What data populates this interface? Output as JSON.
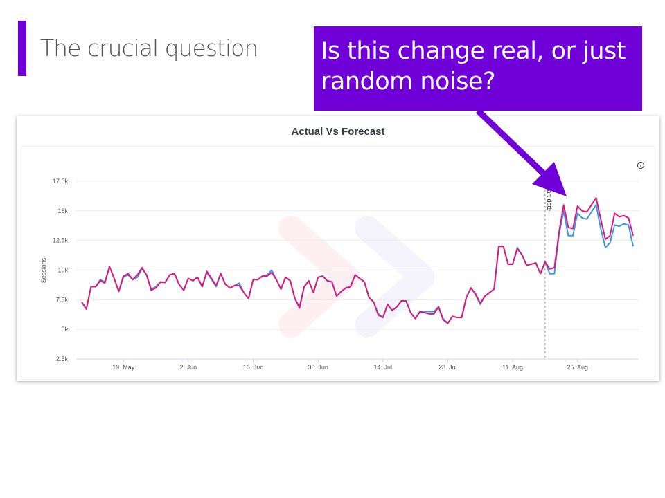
{
  "slide": {
    "title": "The crucial question",
    "callout": "Is this change real, or just random noise?",
    "accent_color": "#7000d8"
  },
  "chart_data": {
    "type": "line",
    "title": "Actual Vs Forecast",
    "xlabel": "",
    "ylabel": "Sessions",
    "ylim": [
      2500,
      17500
    ],
    "y_ticks": [
      2500,
      5000,
      7500,
      10000,
      12500,
      15000,
      17500
    ],
    "y_tick_labels": [
      "2.5k",
      "5k",
      "7.5k",
      "10k",
      "12.5k",
      "15k",
      "17.5k"
    ],
    "x_tick_labels": [
      "19. May",
      "2. Jun",
      "16. Jun",
      "30. Jun",
      "14. Jul",
      "28. Jul",
      "11. Aug",
      "25. Aug"
    ],
    "x_tick_dates": [
      "19 May",
      "2 Jun",
      "16 Jun",
      "30 Jun",
      "14 Jul",
      "28 Jul",
      "11 Aug",
      "25 Aug"
    ],
    "grid": true,
    "annotation": {
      "label": "Start date",
      "date": "18 Aug"
    },
    "info_icon": "info-circle-icon",
    "x": [
      "10 May",
      "11 May",
      "12 May",
      "13 May",
      "14 May",
      "15 May",
      "16 May",
      "17 May",
      "18 May",
      "19 May",
      "20 May",
      "21 May",
      "22 May",
      "23 May",
      "24 May",
      "25 May",
      "26 May",
      "27 May",
      "28 May",
      "29 May",
      "30 May",
      "31 May",
      "1 Jun",
      "2 Jun",
      "3 Jun",
      "4 Jun",
      "5 Jun",
      "6 Jun",
      "7 Jun",
      "8 Jun",
      "9 Jun",
      "10 Jun",
      "11 Jun",
      "12 Jun",
      "13 Jun",
      "14 Jun",
      "15 Jun",
      "16 Jun",
      "17 Jun",
      "18 Jun",
      "19 Jun",
      "20 Jun",
      "21 Jun",
      "22 Jun",
      "23 Jun",
      "24 Jun",
      "25 Jun",
      "26 Jun",
      "27 Jun",
      "28 Jun",
      "29 Jun",
      "30 Jun",
      "1 Jul",
      "2 Jul",
      "3 Jul",
      "4 Jul",
      "5 Jul",
      "6 Jul",
      "7 Jul",
      "8 Jul",
      "9 Jul",
      "10 Jul",
      "11 Jul",
      "12 Jul",
      "13 Jul",
      "14 Jul",
      "15 Jul",
      "16 Jul",
      "17 Jul",
      "18 Jul",
      "19 Jul",
      "20 Jul",
      "21 Jul",
      "22 Jul",
      "23 Jul",
      "24 Jul",
      "25 Jul",
      "26 Jul",
      "27 Jul",
      "28 Jul",
      "29 Jul",
      "30 Jul",
      "31 Jul",
      "1 Aug",
      "2 Aug",
      "3 Aug",
      "4 Aug",
      "5 Aug",
      "6 Aug",
      "7 Aug",
      "8 Aug",
      "9 Aug",
      "10 Aug",
      "11 Aug",
      "12 Aug",
      "13 Aug",
      "14 Aug",
      "15 Aug",
      "16 Aug",
      "17 Aug",
      "18 Aug",
      "19 Aug",
      "20 Aug",
      "21 Aug",
      "22 Aug",
      "23 Aug",
      "24 Aug",
      "25 Aug",
      "26 Aug",
      "27 Aug",
      "28 Aug",
      "29 Aug",
      "30 Aug",
      "31 Aug",
      "1 Sep",
      "2 Sep",
      "3 Sep",
      "4 Sep",
      "5 Sep",
      "6 Sep"
    ],
    "series": [
      {
        "color": "#d81b7c",
        "values": [
          7300,
          6700,
          8600,
          8600,
          9100,
          8900,
          10300,
          9300,
          8200,
          9500,
          9700,
          9200,
          9600,
          10200,
          9600,
          8300,
          8500,
          9000,
          8950,
          9600,
          9700,
          8800,
          8300,
          9300,
          9100,
          9400,
          8600,
          9900,
          9300,
          8700,
          9700,
          8800,
          8500,
          8700,
          8700,
          8100,
          7600,
          9200,
          9200,
          9500,
          9500,
          9800,
          9200,
          8400,
          9400,
          9100,
          7600,
          6800,
          8600,
          9100,
          8100,
          9400,
          9500,
          9100,
          9000,
          7800,
          8200,
          8500,
          8600,
          9600,
          9300,
          9000,
          7700,
          7300,
          6200,
          6000,
          7100,
          6600,
          6900,
          7400,
          7400,
          6400,
          5900,
          6500,
          6400,
          6300,
          6300,
          6900,
          5800,
          5500,
          6100,
          6000,
          6000,
          7700,
          8500,
          8000,
          7200,
          7800,
          8100,
          8400,
          12000,
          12000,
          10500,
          10500,
          11800,
          11300,
          10400,
          10500,
          10600,
          9700,
          10700,
          10100,
          10200,
          13200,
          15500,
          13600,
          13500,
          15400,
          15000,
          14900,
          15500,
          16100,
          14300,
          12600,
          12900,
          14800,
          14500,
          14600,
          14400,
          12900
        ]
      },
      {
        "color": "#3d96e0",
        "values": [
          7300,
          6700,
          8600,
          8600,
          9200,
          9000,
          10300,
          9300,
          8200,
          9400,
          9600,
          9200,
          9400,
          10100,
          9600,
          8400,
          8600,
          9000,
          8950,
          9600,
          9700,
          8800,
          8300,
          9300,
          9100,
          9400,
          8600,
          9800,
          9200,
          8600,
          9700,
          8800,
          8500,
          8700,
          8900,
          8100,
          7600,
          9200,
          9200,
          9500,
          9600,
          10000,
          9200,
          8400,
          9400,
          9100,
          7600,
          6900,
          8600,
          9100,
          8100,
          9400,
          9500,
          9100,
          9000,
          7800,
          8200,
          8500,
          8600,
          9600,
          9300,
          9000,
          7700,
          7300,
          6300,
          6000,
          7100,
          6600,
          6900,
          7400,
          7400,
          6400,
          5900,
          6500,
          6500,
          6500,
          6500,
          6900,
          5900,
          5500,
          6100,
          6000,
          6000,
          7700,
          8500,
          7900,
          7100,
          7800,
          8100,
          8400,
          12000,
          12000,
          10500,
          10500,
          11900,
          11300,
          10400,
          10500,
          10600,
          9700,
          10700,
          9700,
          9700,
          13000,
          15000,
          12900,
          12900,
          14800,
          14400,
          14300,
          14900,
          15500,
          13500,
          11900,
          12300,
          13800,
          13700,
          13900,
          13800,
          12000
        ]
      }
    ]
  }
}
